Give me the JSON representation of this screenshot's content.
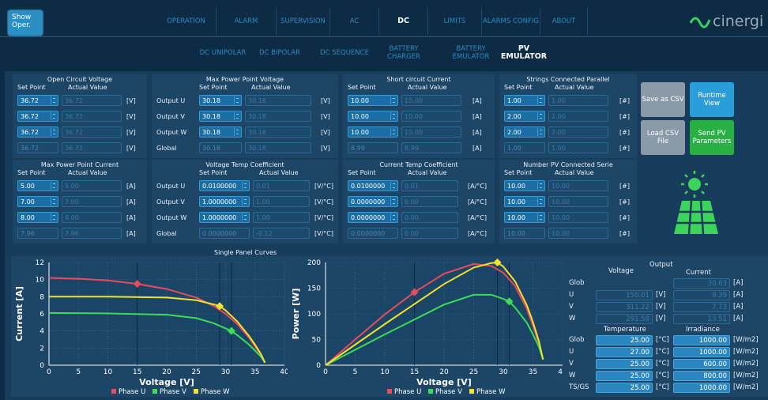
{
  "top": {
    "show_oper": "Show Oper.",
    "nav1": [
      "OPERATION",
      "ALARM",
      "SUPERVISION",
      "AC",
      "DC",
      "LIMITS",
      "ALARMS CONFIG",
      "ABOUT"
    ],
    "nav2": [
      "DC UNIPOLAR",
      "DC BIPOLAR",
      "DC SEQUENCE",
      "BATTERY CHARGER",
      "BATTERY EMULATOR",
      "PV EMULATOR"
    ],
    "logo": "cinergi"
  },
  "hdr": {
    "sp": "Set Point",
    "av": "Actual Value"
  },
  "ocv": {
    "title": "Open Circuit Voltage",
    "sp": [
      "36.72",
      "36.72",
      "36.72",
      "36.72"
    ],
    "av": [
      "36.72",
      "36.72",
      "36.72",
      "36.72"
    ],
    "unit": "[V]"
  },
  "mppv": {
    "title": "Max Power Point Voltage",
    "rows": [
      "Output U",
      "Output V",
      "Output W",
      "Global"
    ],
    "sp": [
      "30.18",
      "30.18",
      "30.18",
      "30.18"
    ],
    "av": [
      "30.18",
      "30.18",
      "30.18",
      "30.18"
    ],
    "unit": "[V]"
  },
  "scc": {
    "title": "Short circuit Current",
    "sp": [
      "10.00",
      "10.00",
      "10.00",
      "8.99"
    ],
    "av": [
      "10.00",
      "10.00",
      "10.00",
      "8.99"
    ],
    "unit": "[A]"
  },
  "scp": {
    "title": "Strings Connected Parallel",
    "sp": [
      "1.00",
      "2.00",
      "2.00",
      "1.00"
    ],
    "av": [
      "1.00",
      "2.00",
      "2.00",
      "1.00"
    ],
    "unit": "[#]"
  },
  "mppc": {
    "title": "Max Power Point Current",
    "sp": [
      "5.00",
      "7.00",
      "8.00",
      "7.96"
    ],
    "av": [
      "5.00",
      "7.00",
      "8.00",
      "7.96"
    ],
    "unit": "[A]"
  },
  "vtc": {
    "title": "Voltage Temp Coefficient",
    "rows": [
      "Output U",
      "Output V",
      "Output W",
      "Global"
    ],
    "sp": [
      "0.0100000",
      "1.0000000",
      "1.0000000",
      "0.0000000"
    ],
    "av": [
      "0.01",
      "1.00",
      "1.00",
      "-0.12"
    ],
    "unit": "[V/°C]"
  },
  "ctc": {
    "title": "Current Temp Coefficient",
    "sp": [
      "0.0100000",
      "0.0000000",
      "0.0000000",
      "0.0000000"
    ],
    "av": [
      "0.01",
      "0.00",
      "0.00",
      "0.00"
    ],
    "unit": "[A/°C]"
  },
  "npcs": {
    "title": "Number PV Connected Serie",
    "sp": [
      "10.00",
      "10.00",
      "10.00",
      "10.00"
    ],
    "av": [
      "10.00",
      "10.00",
      "10.00",
      "10.00"
    ],
    "unit": "[#]"
  },
  "buttons": {
    "save": "Save as CSV",
    "runtime": "Runtime View",
    "load": "Load CSV File",
    "send": "Send PV Parameters"
  },
  "curves": {
    "title": "Single Panel Curves"
  },
  "chart_data": [
    {
      "type": "line",
      "xlabel": "Voltage [V]",
      "ylabel": "Current [A]",
      "xlim": [
        0,
        40
      ],
      "ylim": [
        0,
        12
      ],
      "xticks": [
        "0",
        "5",
        "10",
        "15",
        "20",
        "25",
        "30",
        "35",
        "40"
      ],
      "yticks": [
        "0",
        "2",
        "4",
        "6",
        "8",
        "10",
        "12"
      ],
      "series": [
        {
          "name": "Phase U",
          "color": "#e84a5f",
          "x": [
            0,
            5,
            10,
            15,
            20,
            25,
            28,
            30,
            32,
            34,
            35,
            36,
            36.7
          ],
          "y": [
            10.2,
            10.1,
            9.9,
            9.5,
            8.9,
            7.9,
            6.9,
            6.0,
            4.8,
            3.2,
            2.2,
            1.2,
            0.3
          ]
        },
        {
          "name": "Phase V",
          "color": "#3ddc55",
          "x": [
            0,
            10,
            20,
            25,
            28,
            30,
            31,
            32,
            34,
            35,
            36,
            36.7
          ],
          "y": [
            6.1,
            6.05,
            5.9,
            5.5,
            4.9,
            4.3,
            4.0,
            3.5,
            2.4,
            1.7,
            1.0,
            0.3
          ]
        },
        {
          "name": "Phase W",
          "color": "#f0e22e",
          "x": [
            0,
            10,
            20,
            25,
            28,
            29,
            30,
            32,
            34,
            35,
            36,
            36.7
          ],
          "y": [
            8.0,
            8.0,
            7.9,
            7.6,
            7.1,
            6.9,
            6.4,
            5.1,
            3.4,
            2.4,
            1.3,
            0.3
          ]
        }
      ],
      "markers": [
        {
          "x": 15,
          "y": 9.5,
          "series": 0
        },
        {
          "x": 31,
          "y": 4.0,
          "series": 1
        },
        {
          "x": 29,
          "y": 6.9,
          "series": 2
        }
      ]
    },
    {
      "type": "line",
      "xlabel": "Voltage [V]",
      "ylabel": "Power [W]",
      "xlim": [
        0,
        40
      ],
      "ylim": [
        0,
        200
      ],
      "xticks": [
        "0",
        "5",
        "10",
        "15",
        "20",
        "25",
        "30",
        "35",
        "40"
      ],
      "yticks": [
        "0",
        "50",
        "100",
        "150",
        "200"
      ],
      "series": [
        {
          "name": "Phase U",
          "color": "#e84a5f",
          "x": [
            0,
            5,
            10,
            15,
            20,
            25,
            28,
            30,
            32,
            34,
            35,
            36,
            36.7
          ],
          "y": [
            0,
            50,
            99,
            142,
            178,
            197,
            193,
            180,
            154,
            109,
            77,
            43,
            11
          ]
        },
        {
          "name": "Phase V",
          "color": "#3ddc55",
          "x": [
            0,
            10,
            20,
            25,
            28,
            30,
            31,
            32,
            34,
            35,
            36,
            36.7
          ],
          "y": [
            0,
            60,
            118,
            137,
            137,
            129,
            124,
            112,
            82,
            60,
            36,
            11
          ]
        },
        {
          "name": "Phase W",
          "color": "#f0e22e",
          "x": [
            0,
            10,
            20,
            25,
            28,
            29,
            30,
            32,
            34,
            35,
            36,
            36.7
          ],
          "y": [
            0,
            80,
            158,
            190,
            199,
            200,
            192,
            163,
            116,
            84,
            47,
            11
          ]
        }
      ],
      "markers": [
        {
          "x": 15,
          "y": 142,
          "series": 0
        },
        {
          "x": 31,
          "y": 124,
          "series": 1
        },
        {
          "x": 29,
          "y": 200,
          "series": 2
        }
      ]
    }
  ],
  "legend": [
    "Phase U",
    "Phase V",
    "Phase W"
  ],
  "output": {
    "title": "Output",
    "voltage": "Voltage",
    "current": "Current",
    "rows": [
      "Glob",
      "U",
      "V",
      "W"
    ],
    "volt": [
      "",
      "150.01",
      "311.22",
      "291.58"
    ],
    "curr": [
      "30.63",
      "9.39",
      "7.73",
      "13.51"
    ],
    "vunit": "[V]",
    "cunit": "[A]"
  },
  "env": {
    "temperature": "Temperature",
    "irradiance": "Irradiance",
    "rows": [
      "Glob",
      "U",
      "V",
      "W",
      "TS/GS"
    ],
    "temp": [
      "25.00",
      "27.00",
      "25.00",
      "25.00",
      "25.00"
    ],
    "irr": [
      "1000.00",
      "1000.00",
      "600.00",
      "800.00",
      "1000.00"
    ],
    "tunit": "[°C]",
    "iunit": "[W/m2]"
  }
}
